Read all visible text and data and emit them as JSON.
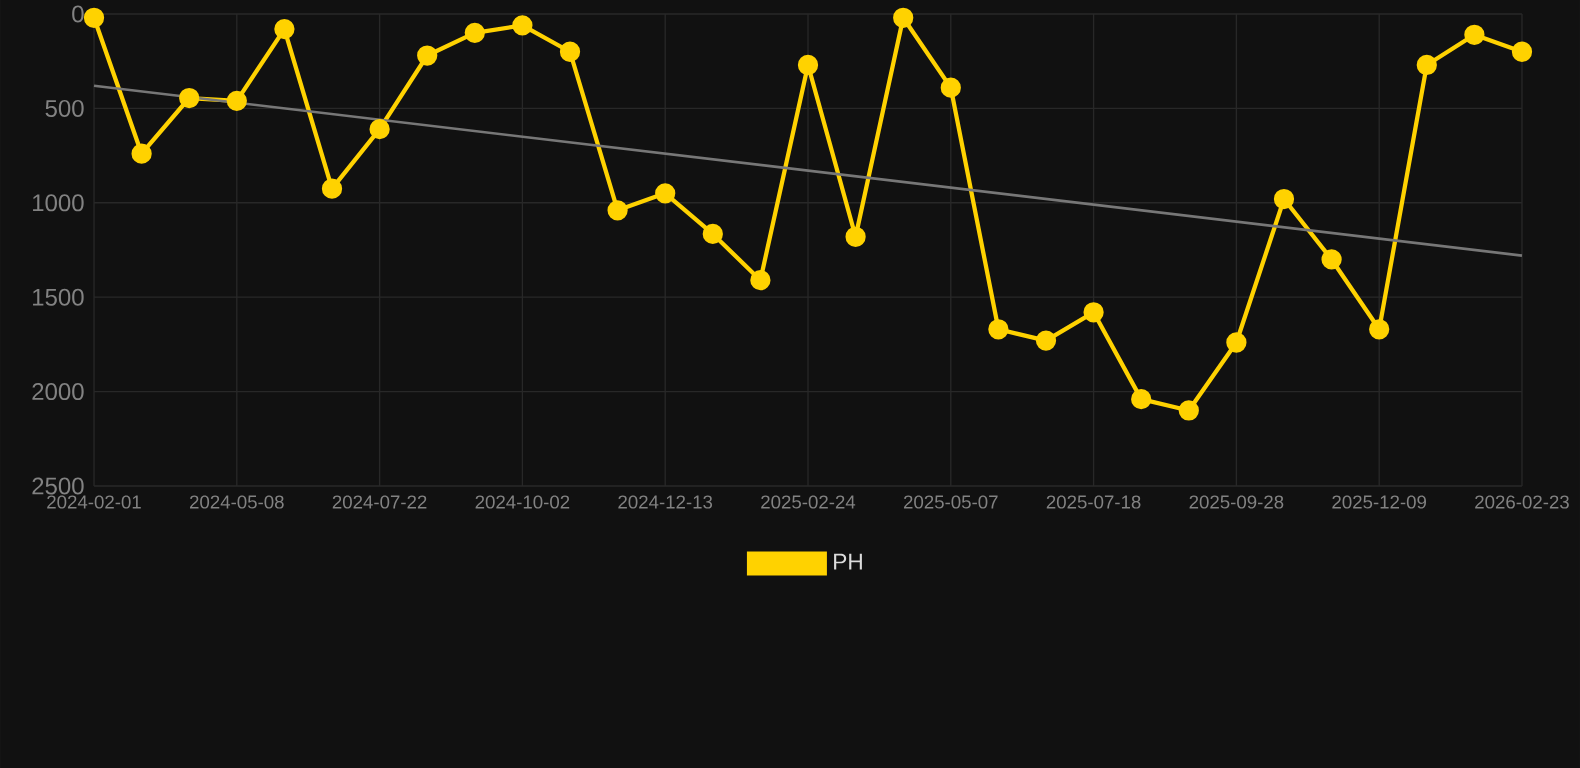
{
  "chart_data": {
    "type": "line",
    "categories": [
      "2024-02-01",
      null,
      null,
      "2024-05-08",
      null,
      null,
      "2024-07-22",
      null,
      null,
      "2024-10-02",
      null,
      null,
      "2024-12-13",
      null,
      null,
      "2025-02-24",
      null,
      null,
      "2025-05-07",
      null,
      null,
      "2025-07-18",
      null,
      null,
      "2025-09-28",
      null,
      null,
      "2025-12-09",
      null,
      null,
      "2026-02-23"
    ],
    "series": [
      {
        "name": "PH",
        "color": "#ffd200",
        "marker": "circle",
        "values": [
          20,
          740,
          445,
          460,
          80,
          925,
          610,
          220,
          100,
          60,
          200,
          1040,
          950,
          1165,
          1410,
          270,
          1180,
          20,
          390,
          1670,
          1730,
          1580,
          2040,
          2100,
          1740,
          980,
          1300,
          1670,
          270,
          110,
          200
        ]
      },
      {
        "type": "line",
        "color": "#777777",
        "marker": "none",
        "values": [
          380,
          null,
          null,
          null,
          null,
          null,
          null,
          null,
          null,
          null,
          null,
          null,
          null,
          null,
          null,
          null,
          null,
          null,
          null,
          null,
          null,
          null,
          null,
          null,
          null,
          null,
          null,
          null,
          null,
          null,
          1280
        ]
      }
    ],
    "ylim": [
      2500,
      0
    ],
    "yticks": [
      0,
      500,
      1000,
      1500,
      2000,
      2500
    ],
    "grid": true,
    "legend": "bottom"
  }
}
